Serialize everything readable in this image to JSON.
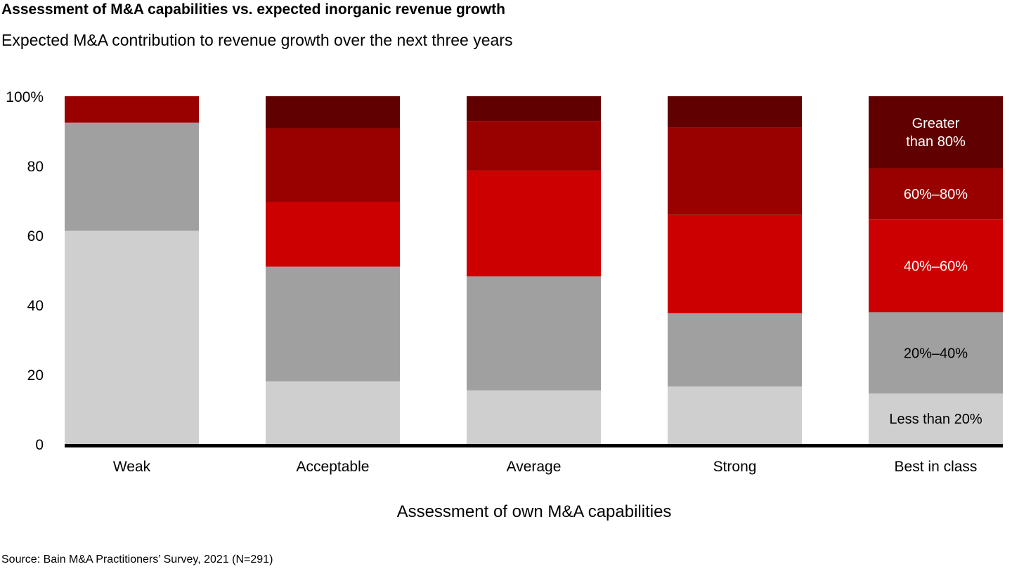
{
  "header": {
    "title": "Assessment of M&A capabilities vs. expected inorganic revenue growth",
    "subtitle": "Expected M&A contribution to revenue growth over the next three years"
  },
  "footer": {
    "source": "Source: Bain M&A Practitioners’ Survey, 2021 (N=291)"
  },
  "chart_data": {
    "type": "bar",
    "stacked": true,
    "title": "Assessment of M&A capabilities vs. expected inorganic revenue growth",
    "subtitle": "Expected M&A contribution to revenue growth over the next three years",
    "xlabel": "Assessment of own M&A capabilities",
    "ylabel": "",
    "ylim": [
      0,
      100
    ],
    "yticks": [
      0,
      20,
      40,
      60,
      80,
      100
    ],
    "ytick_labels": [
      "0",
      "20",
      "40",
      "60",
      "80",
      "100%"
    ],
    "grid": false,
    "legend_placement": "inside-last-bar",
    "categories": [
      "Weak",
      "Acceptable",
      "Average",
      "Strong",
      "Best in class"
    ],
    "series": [
      {
        "name": "Less than 20%",
        "label": "Less than 20%",
        "color": "#cfcfcf",
        "text_color": "#000000",
        "values": [
          61.3,
          18.0,
          15.4,
          16.5,
          14.5
        ]
      },
      {
        "name": "20%–40%",
        "label": "20%–40%",
        "color": "#a0a0a0",
        "text_color": "#000000",
        "values": [
          31.1,
          33.0,
          32.8,
          21.1,
          23.4
        ]
      },
      {
        "name": "40%–60%",
        "label": "40%–60%",
        "color": "#cc0000",
        "text_color": "#ffffff",
        "values": [
          0,
          18.6,
          30.4,
          28.3,
          26.7
        ]
      },
      {
        "name": "60%–80%",
        "label": "60%–80%",
        "color": "#990000",
        "text_color": "#ffffff",
        "values": [
          7.6,
          21.2,
          14.3,
          25.2,
          14.7
        ]
      },
      {
        "name": "Greater than 80%",
        "label": "Greater than 80%",
        "label_lines": [
          "Greater",
          "than 80%"
        ],
        "color": "#610000",
        "text_color": "#ffffff",
        "values": [
          0,
          9.2,
          7.1,
          8.9,
          20.7
        ]
      }
    ]
  }
}
